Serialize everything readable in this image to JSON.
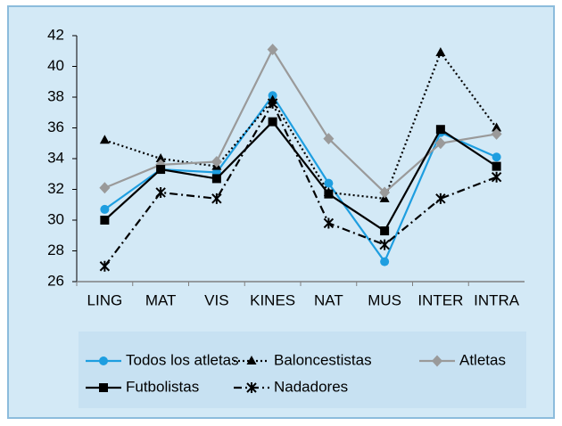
{
  "chart_data": {
    "type": "line",
    "categories": [
      "LING",
      "MAT",
      "VIS",
      "KINES",
      "NAT",
      "MUS",
      "INTER",
      "INTRA"
    ],
    "ylim": [
      26,
      42
    ],
    "yticks": [
      26,
      28,
      30,
      32,
      34,
      36,
      38,
      40,
      42
    ],
    "legend": "bottom",
    "series": [
      {
        "name": "Todos los atletas",
        "color": "#1e9ee0",
        "dash": "solid",
        "marker": "circle",
        "values": [
          30.7,
          33.3,
          33.1,
          38.1,
          32.4,
          27.3,
          35.7,
          34.1
        ]
      },
      {
        "name": "Baloncestistas",
        "color": "#000000",
        "dash": "dotted",
        "marker": "triangle",
        "values": [
          35.2,
          34.0,
          33.5,
          37.8,
          31.8,
          31.4,
          40.9,
          36.0
        ]
      },
      {
        "name": "Atletas",
        "color": "#9a9a9a",
        "dash": "solid",
        "marker": "diamond",
        "values": [
          32.1,
          33.6,
          33.8,
          41.1,
          35.3,
          31.8,
          35.0,
          35.6
        ]
      },
      {
        "name": "Futbolistas",
        "color": "#000000",
        "dash": "solid",
        "marker": "square",
        "values": [
          30.0,
          33.3,
          32.7,
          36.4,
          31.7,
          29.3,
          35.9,
          33.5
        ]
      },
      {
        "name": "Nadadores",
        "color": "#000000",
        "dash": "dashdot",
        "marker": "star",
        "values": [
          27.0,
          31.8,
          31.4,
          37.6,
          29.8,
          28.4,
          31.4,
          32.8
        ]
      }
    ]
  }
}
